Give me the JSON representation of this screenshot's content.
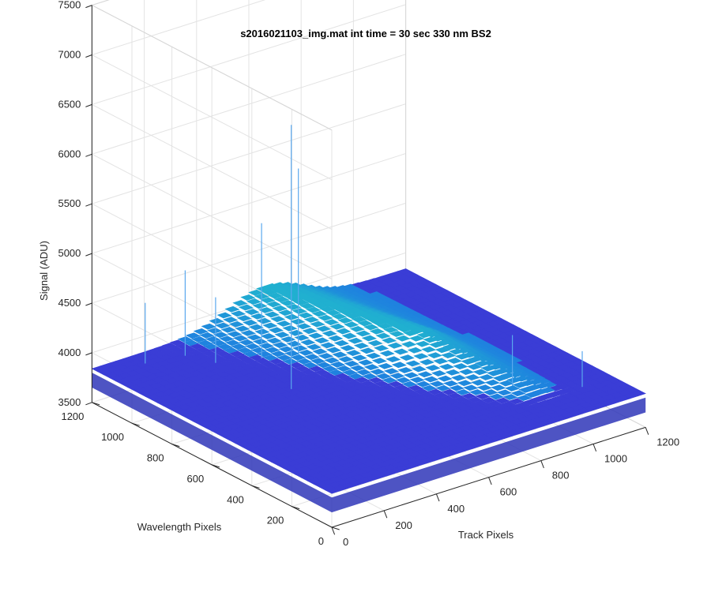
{
  "chart_data": {
    "type": "surface",
    "title": "s2016021103_img.mat int time = 30 sec  330 nm BS2",
    "xlabel": "Track Pixels",
    "ylabel": "Wavelength Pixels",
    "zlabel": "Signal (ADU)",
    "xlim": [
      0,
      1200
    ],
    "ylim": [
      0,
      1200
    ],
    "zlim": [
      3500,
      7500
    ],
    "x_ticks": [
      "0",
      "200",
      "400",
      "600",
      "800",
      "1000",
      "1200"
    ],
    "y_ticks": [
      "0",
      "200",
      "400",
      "600",
      "800",
      "1000",
      "1200"
    ],
    "z_ticks": [
      "3500",
      "4000",
      "4500",
      "5000",
      "5500",
      "6000",
      "6500",
      "7000",
      "7500"
    ],
    "grid": true,
    "colormap": "parula",
    "baseline_signal": 3800,
    "peak_signal": 6500,
    "colors": {
      "low": "#3a3dd6",
      "mid": "#1f7fe0",
      "high": "#20b0d0",
      "grid": "#e3e3e3",
      "axis": "#262626"
    }
  }
}
